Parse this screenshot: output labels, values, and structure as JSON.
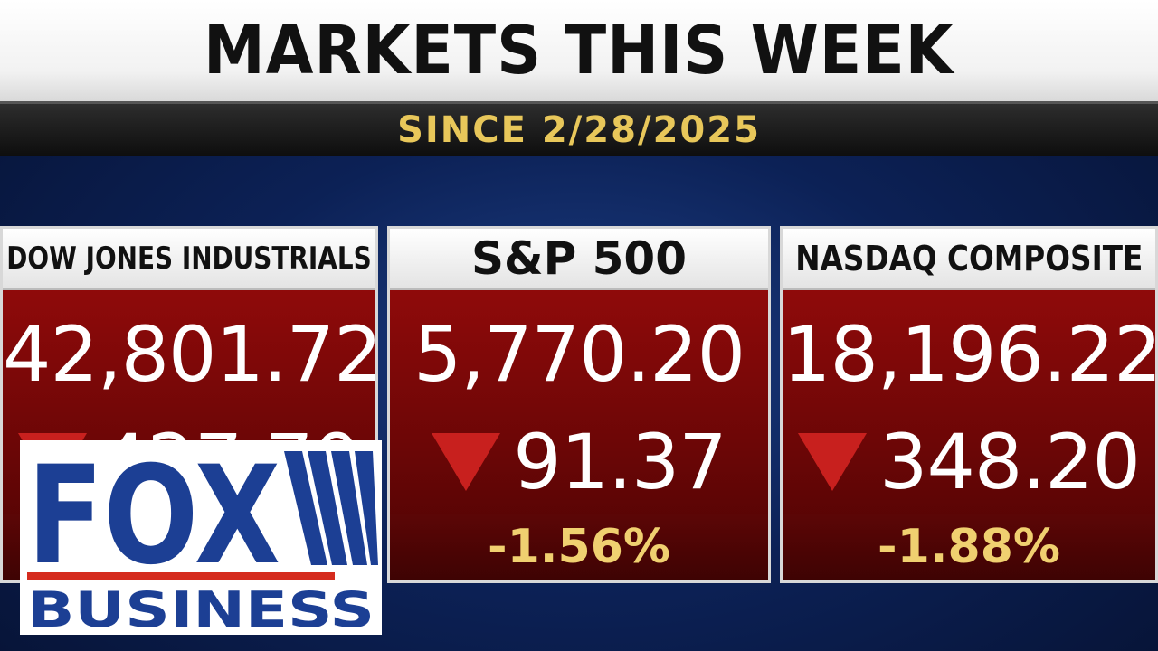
{
  "header": {
    "title": "MARKETS THIS WEEK",
    "subtitle": "SINCE 2/28/2025"
  },
  "indices": [
    {
      "name": "DOW JONES INDUSTRIALS",
      "value": "42,801.72",
      "change": "427.70",
      "direction": "down",
      "percent": ""
    },
    {
      "name": "S&P 500",
      "value": "5,770.20",
      "change": "91.37",
      "direction": "down",
      "percent": "-1.56%"
    },
    {
      "name": "NASDAQ COMPOSITE",
      "value": "18,196.22",
      "change": "348.20",
      "direction": "down",
      "percent": "-1.88%"
    }
  ],
  "logo": {
    "top_text": "FOX",
    "bottom_text": "BUSINESS",
    "colors": {
      "blue": "#1c3f94",
      "red": "#d52b1e",
      "white": "#ffffff"
    }
  }
}
